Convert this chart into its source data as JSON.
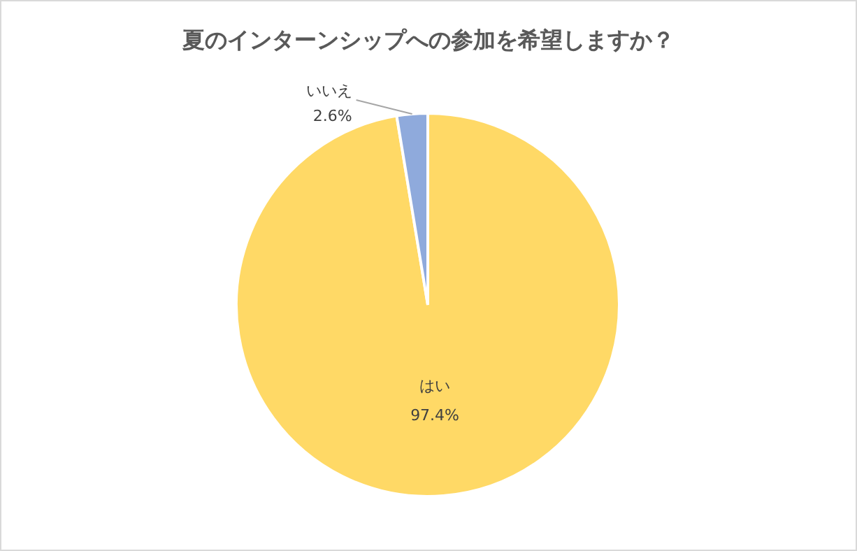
{
  "chart_data": {
    "type": "pie",
    "title": "夏のインターンシップへの参加を希望しますか？",
    "categories": [
      "はい",
      "いいえ"
    ],
    "values": [
      97.4,
      2.6
    ],
    "colors": [
      "#ffd966",
      "#8faadc"
    ],
    "value_labels": [
      "97.4%",
      "2.6%"
    ]
  }
}
